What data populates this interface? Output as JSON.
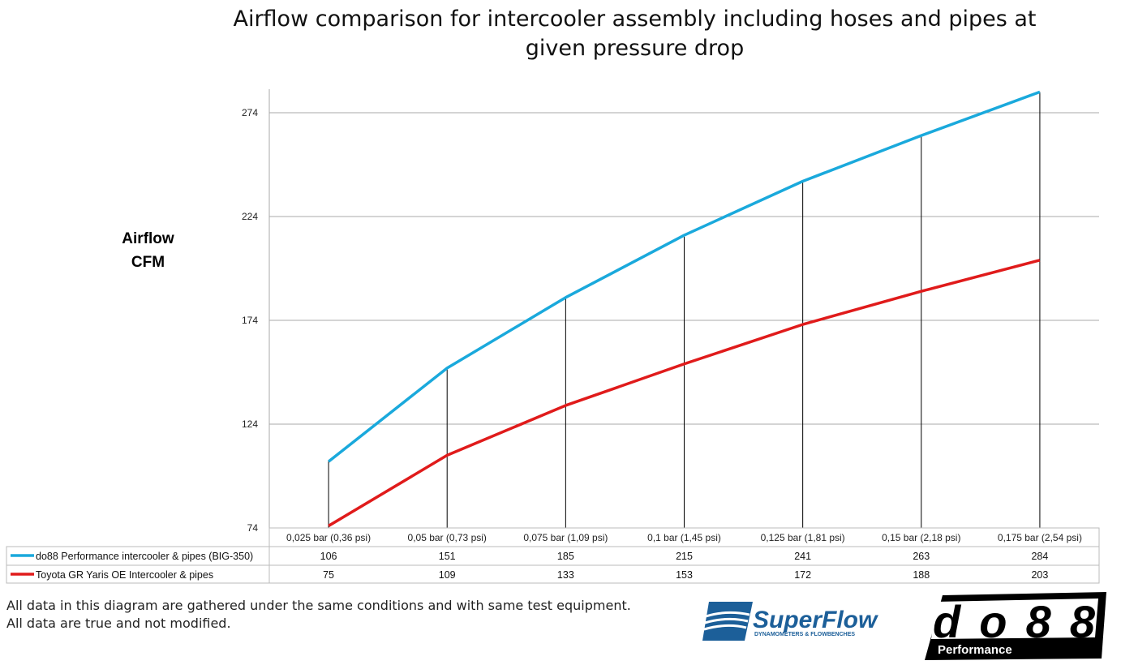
{
  "chart_data": {
    "type": "line",
    "title": "Airflow comparison for intercooler assembly including hoses and pipes at given pressure drop",
    "title_lines": [
      "Airflow comparison for intercooler assembly including hoses and pipes at",
      "given pressure drop"
    ],
    "ylabel_lines": [
      "Airflow",
      "CFM"
    ],
    "xlabel": "",
    "categories": [
      "0,025 bar (0,36 psi)",
      "0,05 bar (0,73 psi)",
      "0,075 bar (1,09 psi)",
      "0,1 bar (1,45 psi)",
      "0,125 bar (1,81 psi)",
      "0,15 bar (2,18 psi)",
      "0,175 bar (2,54 psi)"
    ],
    "yticks": [
      74,
      124,
      174,
      224,
      274
    ],
    "ylim": [
      74,
      285
    ],
    "grid": true,
    "legend": "data-table-below",
    "series": [
      {
        "name": "do88 Performance intercooler & pipes (BIG-350)",
        "color": "#1aa9dc",
        "values": [
          106,
          151,
          185,
          215,
          241,
          263,
          284
        ]
      },
      {
        "name": "Toyota GR Yaris OE Intercooler & pipes",
        "color": "#e01b1b",
        "values": [
          75,
          109,
          133,
          153,
          172,
          188,
          203
        ]
      }
    ]
  },
  "notes": [
    "All data in this diagram are gathered under the same conditions and with same test equipment.",
    "All data are true and not modified."
  ],
  "logos": {
    "superflow": "SuperFlow",
    "superflow_sub": "DYNAMOMETERS & FLOWBENCHES",
    "do88": "do88",
    "do88_sub": "Performance"
  }
}
